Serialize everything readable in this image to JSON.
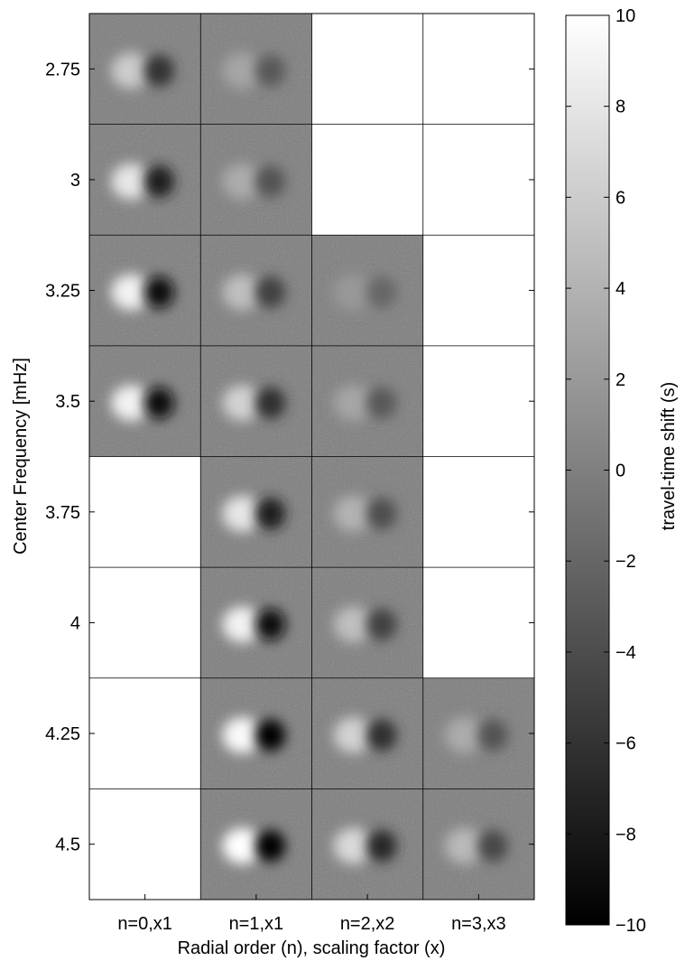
{
  "chart_data": {
    "type": "heatmap",
    "title": "",
    "xlabel": "Radial order (n), scaling factor (x)",
    "ylabel": "Center Frequency [mHz]",
    "columns": [
      "n=0,x1",
      "n=1,x1",
      "n=2,x2",
      "n=3,x3"
    ],
    "rows": [
      "2.75",
      "3",
      "3.25",
      "3.5",
      "3.75",
      "4",
      "4.25",
      "4.5"
    ],
    "panel_present": [
      [
        true,
        true,
        false,
        false
      ],
      [
        true,
        true,
        false,
        false
      ],
      [
        true,
        true,
        true,
        false
      ],
      [
        true,
        true,
        true,
        false
      ],
      [
        false,
        true,
        true,
        false
      ],
      [
        false,
        true,
        true,
        false
      ],
      [
        false,
        true,
        true,
        true
      ],
      [
        false,
        true,
        true,
        true
      ]
    ],
    "panel_peak_shift_s": [
      [
        6,
        3,
        null,
        null
      ],
      [
        8,
        3.5,
        null,
        null
      ],
      [
        9,
        5,
        2,
        null
      ],
      [
        9,
        6.5,
        3,
        null
      ],
      [
        null,
        8,
        4,
        null
      ],
      [
        null,
        9,
        5,
        null
      ],
      [
        null,
        9.5,
        6.5,
        3.5
      ],
      [
        null,
        10,
        7,
        4.5
      ]
    ],
    "colorbar": {
      "label": "travel-time shift (s)",
      "range": [
        -10,
        10
      ],
      "ticks": [
        10,
        8,
        6,
        4,
        2,
        0,
        -2,
        -4,
        -6,
        -8,
        -10
      ],
      "colormap": "gray",
      "low_color": "#000000",
      "high_color": "#ffffff"
    },
    "background_gray": "#808080",
    "empty_panel_color": "#ffffff"
  }
}
